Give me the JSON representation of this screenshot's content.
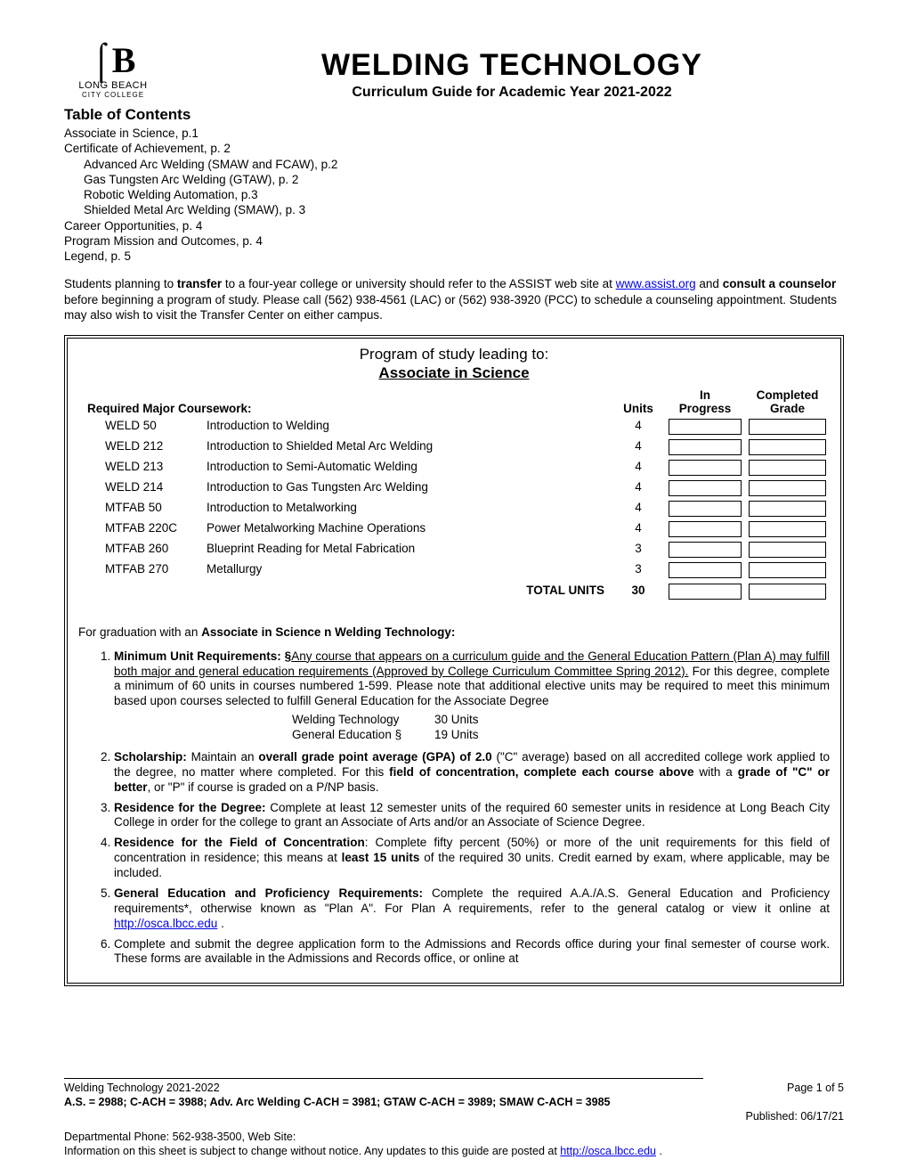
{
  "logo": {
    "glyph": "⌠B",
    "name": "LONG BEACH",
    "sub": "CITY COLLEGE"
  },
  "title": "WELDING TECHNOLOGY",
  "subtitle": "Curriculum Guide for Academic Year 2021-2022",
  "toc_heading": "Table of Contents",
  "toc": {
    "l1": "Associate in Science, p.1",
    "l2": "Certificate of Achievement, p. 2",
    "l3": "Advanced Arc Welding (SMAW and FCAW), p.2",
    "l4": "Gas Tungsten Arc Welding (GTAW), p. 2",
    "l5": "Robotic Welding Automation, p.3",
    "l6": "Shielded Metal Arc Welding (SMAW), p. 3",
    "l7": "Career Opportunities,   p. 4",
    "l8": "Program Mission and Outcomes,   p. 4",
    "l9": "Legend,   p. 5"
  },
  "intro": {
    "p1a": "Students planning to ",
    "p1b": "transfer",
    "p1c": " to a four-year college or university should refer to the ASSIST web site at ",
    "link1": "www.assist.org",
    "p1d": " and ",
    "p2a": "consult a counselor",
    "p2b": " before beginning a program of study.  Please call (562) 938-4561 (LAC) or (562) 938-3920 (PCC) to schedule a counseling appointment.  Students may also wish to visit the Transfer Center on either campus."
  },
  "program": {
    "lead": "Program of study leading to:",
    "degree": "Associate in Science",
    "req_label": "Required Major Coursework:",
    "head_units": "Units",
    "head_prog1": "In",
    "head_prog2": "Progress",
    "head_grade1": "Completed",
    "head_grade2": "Grade",
    "courses": [
      {
        "code": "WELD 50",
        "name": "Introduction to Welding",
        "units": "4"
      },
      {
        "code": "WELD 212",
        "name": "Introduction to Shielded Metal Arc Welding",
        "units": "4"
      },
      {
        "code": "WELD 213",
        "name": "Introduction to Semi-Automatic Welding",
        "units": "4"
      },
      {
        "code": "WELD 214",
        "name": "Introduction to Gas Tungsten Arc Welding",
        "units": "4"
      },
      {
        "code": "MTFAB 50",
        "name": "Introduction to Metalworking",
        "units": "4"
      },
      {
        "code": "MTFAB 220C",
        "name": "Power Metalworking Machine Operations",
        "units": "4"
      },
      {
        "code": "MTFAB 260",
        "name": "Blueprint Reading for Metal Fabrication",
        "units": "3"
      },
      {
        "code": "MTFAB 270",
        "name": "Metallurgy",
        "units": "3"
      }
    ],
    "total_label": "TOTAL UNITS",
    "total_units": "30"
  },
  "grad": {
    "heading_a": "For graduation with an ",
    "heading_b": "Associate in Science n Welding Technology:",
    "r1_a": "Minimum Unit Requirements: §",
    "r1_b": "Any course that appears on a curriculum guide and the General Education Pattern (Plan A) may fulfill both major and general education requirements (Approved by College Curriculum Committee Spring 2012).",
    "r1_c": " For this degree, complete a minimum of 60 units in courses numbered 1-599. Please note that additional elective units may be required to meet this minimum based upon courses selected to fulfill General Education for the Associate Degree",
    "unit_summary": {
      "row1_label": "Welding Technology",
      "row1_val": "30 Units",
      "row2_label": "General Education §",
      "row2_val": "19 Units"
    },
    "r2_a": "Scholarship:",
    "r2_b": " Maintain an ",
    "r2_c": "overall grade point average (GPA) of 2.0",
    "r2_d": " (\"C\" average) based on all accredited college work applied to the degree, no matter where completed.  For this ",
    "r2_e": "field of concentration, complete each course above",
    "r2_f": " with a ",
    "r2_g": "grade of \"C\" or better",
    "r2_h": ", or \"P\" if course is graded on a P/NP basis.",
    "r3_a": "Residence for the Degree:",
    "r3_b": "  Complete at least 12 semester units of the required 60 semester units in residence at Long Beach City College in order for the college to grant an Associate of Arts and/or an Associate of Science Degree.",
    "r4_a": "Residence for the Field of Concentration",
    "r4_b": ": Complete fifty percent (50%) or more of the unit requirements for this field of concentration in residence; this means at ",
    "r4_c": "least 15 units",
    "r4_d": " of the required 30 units. Credit earned by exam, where applicable, may be included.",
    "r5_a": "General Education and Proficiency Requirements:",
    "r5_b": " Complete the required A.A./A.S. General Education and Proficiency requirements*, otherwise known as \"Plan A\".  For Plan A requirements, refer to the general catalog or view it online at ",
    "r5_link": "http://osca.lbcc.edu",
    "r5_c": " .",
    "r6": "Complete and submit the degree application form to the Admissions and Records office during your final semester of course work.  These forms are available in the Admissions and Records office, or online at"
  },
  "footer": {
    "left": "Welding Technology 2021-2022",
    "right": "Page 1 of 5",
    "codes": "A.S. = 2988; C-ACH = 3988; Adv. Arc Welding C-ACH = 3981; GTAW C-ACH = 3989; SMAW C-ACH = 3985",
    "published": "Published: 06/17/21",
    "dept": "Departmental Phone: 562-938-3500, Web Site:",
    "info_a": "Information on this sheet is subject to change without notice.  Any updates to this guide are posted at ",
    "info_link": "http://osca.lbcc.edu",
    "info_b": " ."
  }
}
